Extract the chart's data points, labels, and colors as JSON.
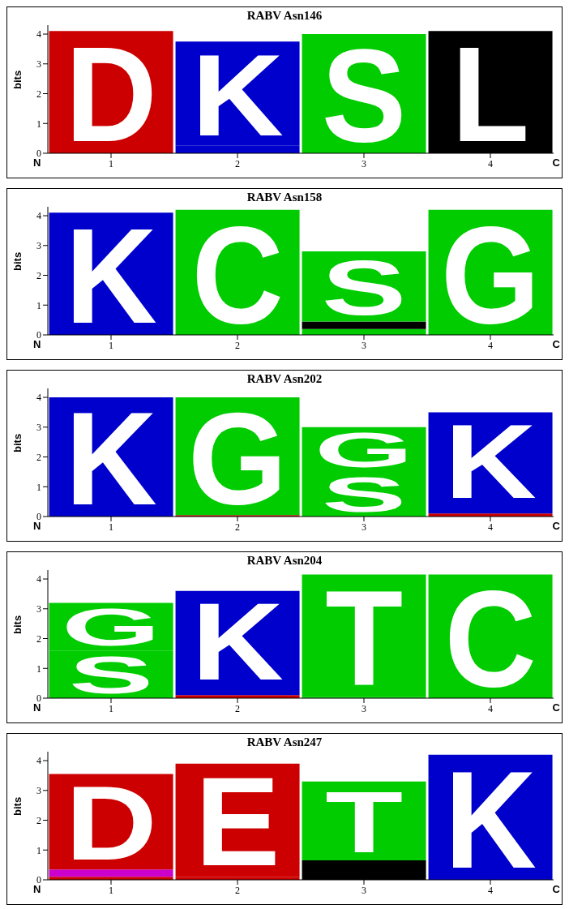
{
  "chart_data": [
    {
      "type": "bar",
      "stacked": true,
      "title": "RABV Asn146",
      "ylabel": "bits",
      "categories": [
        "1",
        "2",
        "3",
        "4"
      ],
      "ylim": [
        0,
        4.3
      ],
      "yticks": [
        0,
        1,
        2,
        3,
        4
      ],
      "annotations": [
        "N",
        "C"
      ],
      "series": [
        {
          "name": "D",
          "color": "#cc0000",
          "values": [
            4.1,
            null,
            null,
            null
          ]
        },
        {
          "color": "#0000cc",
          "values": [
            null,
            0.25,
            null,
            null
          ]
        },
        {
          "name": "K",
          "color": "#0000cc",
          "values": [
            null,
            3.5,
            null,
            null
          ]
        },
        {
          "name": "S",
          "color": "#00cc00",
          "values": [
            null,
            null,
            4.0,
            null
          ]
        },
        {
          "name": "L",
          "color": "#000000",
          "values": [
            null,
            null,
            null,
            4.1
          ]
        }
      ]
    },
    {
      "type": "bar",
      "stacked": true,
      "title": "RABV Asn158",
      "ylabel": "bits",
      "categories": [
        "1",
        "2",
        "3",
        "4"
      ],
      "ylim": [
        0,
        4.3
      ],
      "yticks": [
        0,
        1,
        2,
        3,
        4
      ],
      "annotations": [
        "N",
        "C"
      ],
      "series": [
        {
          "color": "#00cc00",
          "values": [
            null,
            null,
            0.2,
            null
          ]
        },
        {
          "color": "#000000",
          "values": [
            null,
            null,
            0.25,
            null
          ]
        },
        {
          "name": "K",
          "color": "#0000cc",
          "values": [
            4.1,
            null,
            null,
            null
          ]
        },
        {
          "name": "C",
          "color": "#00cc00",
          "values": [
            null,
            4.2,
            null,
            null
          ]
        },
        {
          "name": "S",
          "color": "#00cc00",
          "values": [
            null,
            null,
            2.35,
            null
          ]
        },
        {
          "name": "G",
          "color": "#00cc00",
          "values": [
            null,
            null,
            null,
            4.2
          ]
        }
      ]
    },
    {
      "type": "bar",
      "stacked": true,
      "title": "RABV Asn202",
      "ylabel": "bits",
      "categories": [
        "1",
        "2",
        "3",
        "4"
      ],
      "ylim": [
        0,
        4.3
      ],
      "yticks": [
        0,
        1,
        2,
        3,
        4
      ],
      "annotations": [
        "N",
        "C"
      ],
      "series": [
        {
          "color": "#cc0000",
          "values": [
            null,
            0.05,
            null,
            0.1
          ]
        },
        {
          "color": "#0000cc",
          "values": [
            null,
            null,
            null,
            0.2
          ]
        },
        {
          "name": "S",
          "color": "#00cc00",
          "values": [
            null,
            null,
            1.5,
            null
          ]
        },
        {
          "name": "G",
          "color": "#00cc00",
          "values": [
            null,
            3.95,
            1.5,
            null
          ]
        },
        {
          "name": "K",
          "color": "#0000cc",
          "values": [
            4.0,
            null,
            null,
            3.2
          ]
        }
      ]
    },
    {
      "type": "bar",
      "stacked": true,
      "title": "RABV Asn204",
      "ylabel": "bits",
      "categories": [
        "1",
        "2",
        "3",
        "4"
      ],
      "ylim": [
        0,
        4.3
      ],
      "yticks": [
        0,
        1,
        2,
        3,
        4
      ],
      "annotations": [
        "N",
        "C"
      ],
      "series": [
        {
          "color": "#cc0000",
          "values": [
            null,
            0.1,
            null,
            null
          ]
        },
        {
          "color": "#0000cc",
          "values": [
            null,
            0.2,
            null,
            null
          ]
        },
        {
          "color": "#00cc00",
          "values": [
            null,
            null,
            0.05,
            null
          ]
        },
        {
          "name": "S",
          "color": "#00cc00",
          "values": [
            1.6,
            null,
            null,
            null
          ]
        },
        {
          "name": "G",
          "color": "#00cc00",
          "values": [
            1.6,
            null,
            null,
            null
          ]
        },
        {
          "name": "K",
          "color": "#0000cc",
          "values": [
            null,
            3.3,
            null,
            null
          ]
        },
        {
          "name": "T",
          "color": "#00cc00",
          "values": [
            null,
            null,
            4.1,
            null
          ]
        },
        {
          "name": "C",
          "color": "#00cc00",
          "values": [
            null,
            null,
            null,
            4.15
          ]
        }
      ]
    },
    {
      "type": "bar",
      "stacked": true,
      "title": "RABV Asn247",
      "ylabel": "bits",
      "categories": [
        "1",
        "2",
        "3",
        "4"
      ],
      "ylim": [
        0,
        4.3
      ],
      "yticks": [
        0,
        1,
        2,
        3,
        4
      ],
      "annotations": [
        "N",
        "C"
      ],
      "series": [
        {
          "color": "#cc0000",
          "values": [
            0.1,
            0.1,
            null,
            null
          ]
        },
        {
          "color": "#cc00cc",
          "values": [
            0.25,
            null,
            null,
            null
          ]
        },
        {
          "color": "#000000",
          "values": [
            null,
            null,
            0.65,
            null
          ]
        },
        {
          "name": "D",
          "color": "#cc0000",
          "values": [
            3.2,
            null,
            null,
            null
          ]
        },
        {
          "name": "E",
          "color": "#cc0000",
          "values": [
            null,
            3.8,
            null,
            null
          ]
        },
        {
          "name": "T",
          "color": "#00cc00",
          "values": [
            null,
            null,
            2.65,
            null
          ]
        },
        {
          "name": "K",
          "color": "#0000cc",
          "values": [
            null,
            null,
            null,
            4.2
          ]
        }
      ]
    }
  ]
}
